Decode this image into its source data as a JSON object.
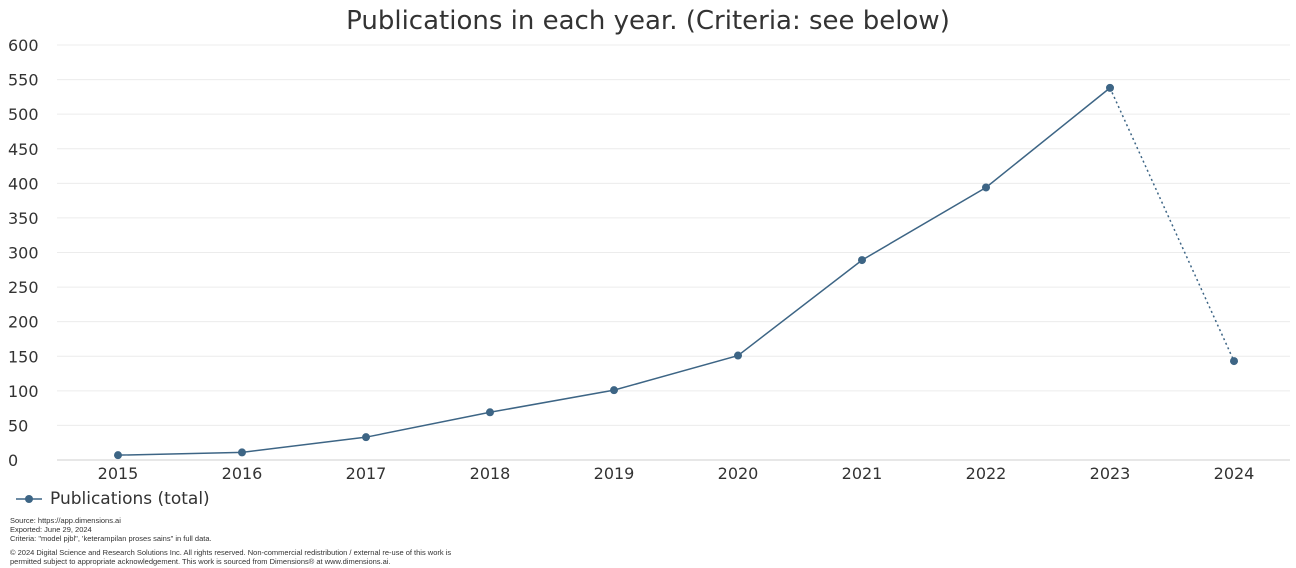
{
  "chart_data": {
    "type": "line",
    "title": "Publications in each year. (Criteria: see below)",
    "categories": [
      "2015",
      "2016",
      "2017",
      "2018",
      "2019",
      "2020",
      "2021",
      "2022",
      "2023",
      "2024"
    ],
    "series": [
      {
        "name": "Publications (total)",
        "values": [
          7,
          11,
          33,
          69,
          101,
          151,
          289,
          394,
          538,
          143
        ],
        "color": "#3d6585"
      }
    ],
    "partial_last_point": true,
    "ylim": [
      0,
      600
    ],
    "yticks": [
      "0",
      "50",
      "100",
      "150",
      "200",
      "250",
      "300",
      "350",
      "400",
      "450",
      "500",
      "550",
      "600"
    ],
    "grid": true,
    "legend": "bottom-left"
  },
  "footer": {
    "source": "Source: https://app.dimensions.ai",
    "exported": "Exported: June 29, 2024",
    "criteria": "Criteria: \"model pjbl\", 'keterampilan proses sains\" in full data.",
    "copyright1": "© 2024 Digital Science and Research Solutions Inc. All rights reserved. Non-commercial redistribution / external re-use of this work is",
    "copyright2": "permitted subject to appropriate acknowledgement. This work is sourced from Dimensions® at www.dimensions.ai."
  }
}
